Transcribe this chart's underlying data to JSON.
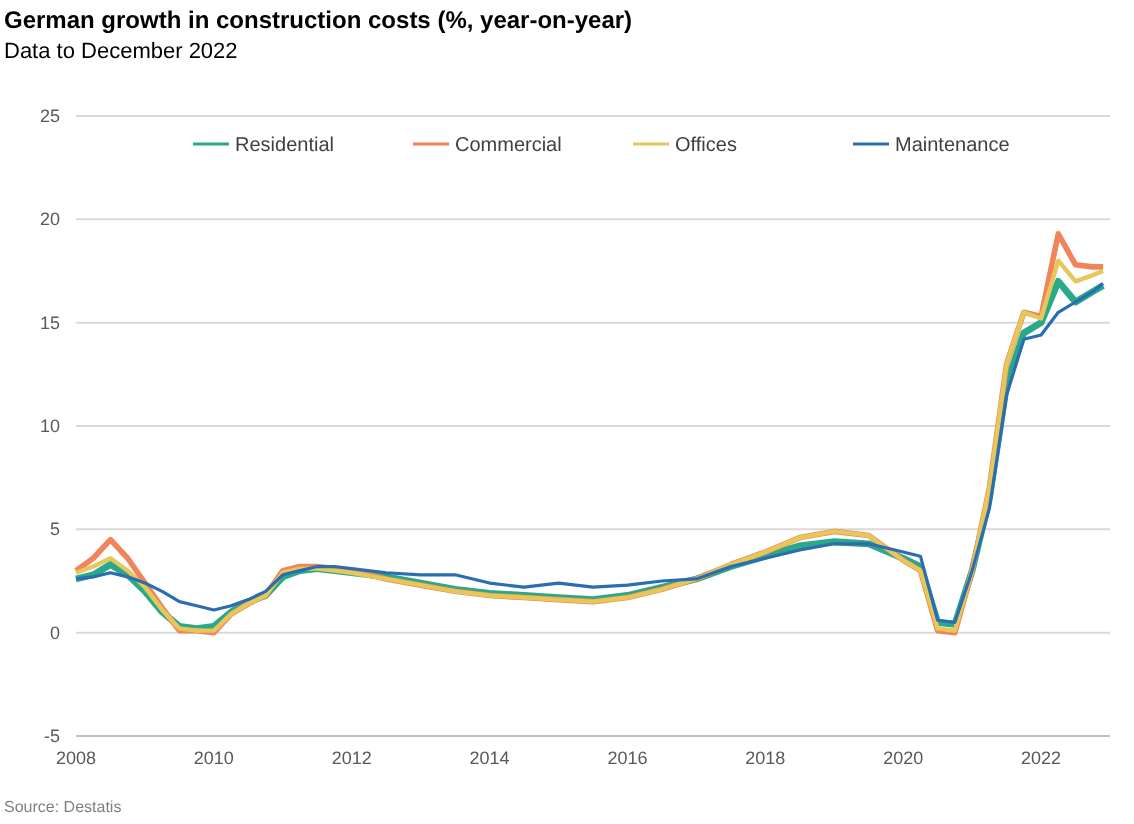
{
  "chart_data": {
    "type": "line",
    "title": "German growth in construction costs (%, year-on-year)",
    "subtitle": "Data to December 2022",
    "x": [
      2008,
      2008.25,
      2008.5,
      2008.75,
      2009,
      2009.25,
      2009.5,
      2009.75,
      2010,
      2010.25,
      2010.5,
      2010.75,
      2011,
      2011.25,
      2011.5,
      2011.75,
      2012,
      2012.5,
      2013,
      2013.5,
      2014,
      2014.5,
      2015,
      2015.5,
      2016,
      2016.5,
      2017,
      2017.5,
      2018,
      2018.5,
      2019,
      2019.5,
      2020,
      2020.25,
      2020.5,
      2020.75,
      2021,
      2021.25,
      2021.5,
      2021.75,
      2022,
      2022.25,
      2022.5,
      2022.75,
      2022.9
    ],
    "series": [
      {
        "name": "Residential",
        "color": "#2aa88a",
        "values": [
          2.6,
          2.8,
          3.3,
          2.8,
          2.0,
          1.0,
          0.3,
          0.2,
          0.3,
          1.0,
          1.5,
          1.8,
          2.7,
          3.0,
          3.1,
          3.0,
          2.9,
          2.7,
          2.4,
          2.1,
          1.9,
          1.8,
          1.7,
          1.6,
          1.8,
          2.2,
          2.6,
          3.2,
          3.7,
          4.2,
          4.4,
          4.3,
          3.6,
          3.2,
          0.5,
          0.4,
          3.0,
          6.5,
          12.0,
          14.5,
          15.0,
          17.0,
          16.0,
          16.5,
          16.8
        ]
      },
      {
        "name": "Commercial",
        "color": "#f0845a",
        "values": [
          3.0,
          3.6,
          4.5,
          3.6,
          2.4,
          1.2,
          0.1,
          0.1,
          0.0,
          0.9,
          1.4,
          1.8,
          3.0,
          3.2,
          3.2,
          3.1,
          3.0,
          2.6,
          2.3,
          2.0,
          1.8,
          1.7,
          1.6,
          1.5,
          1.7,
          2.1,
          2.6,
          3.3,
          3.9,
          4.6,
          4.9,
          4.7,
          3.5,
          3.0,
          0.1,
          0.0,
          3.0,
          7.0,
          13.0,
          15.5,
          15.3,
          19.3,
          17.8,
          17.7,
          17.7
        ]
      },
      {
        "name": "Offices",
        "color": "#e4c85a",
        "values": [
          2.9,
          3.2,
          3.6,
          3.0,
          2.2,
          1.1,
          0.2,
          0.1,
          0.1,
          0.9,
          1.4,
          1.8,
          2.9,
          3.1,
          3.1,
          3.0,
          2.9,
          2.6,
          2.3,
          2.0,
          1.8,
          1.7,
          1.6,
          1.5,
          1.7,
          2.1,
          2.6,
          3.3,
          3.9,
          4.6,
          4.9,
          4.7,
          3.5,
          3.0,
          0.2,
          0.1,
          3.0,
          7.0,
          13.0,
          15.5,
          15.2,
          18.0,
          17.0,
          17.3,
          17.5
        ]
      },
      {
        "name": "Maintenance",
        "color": "#2a6db0",
        "values": [
          2.6,
          2.7,
          2.9,
          2.7,
          2.4,
          2.0,
          1.5,
          1.3,
          1.1,
          1.3,
          1.6,
          2.0,
          2.8,
          3.0,
          3.2,
          3.2,
          3.1,
          2.9,
          2.8,
          2.8,
          2.4,
          2.2,
          2.4,
          2.2,
          2.3,
          2.5,
          2.6,
          3.2,
          3.6,
          4.0,
          4.3,
          4.3,
          3.9,
          3.7,
          0.6,
          0.5,
          3.0,
          6.0,
          11.5,
          14.2,
          14.4,
          15.5,
          16.0,
          16.5,
          16.9
        ]
      }
    ],
    "xlim": [
      2008,
      2023
    ],
    "xticks": [
      2008,
      2010,
      2012,
      2014,
      2016,
      2018,
      2020,
      2022
    ],
    "ylim": [
      -5,
      25
    ],
    "yticks": [
      -5,
      0,
      5,
      10,
      15,
      20,
      25
    ],
    "grid": "y",
    "legend": "top",
    "marker": "none",
    "line_style": "solid",
    "annotations": [
      "Source: Destatis"
    ]
  }
}
